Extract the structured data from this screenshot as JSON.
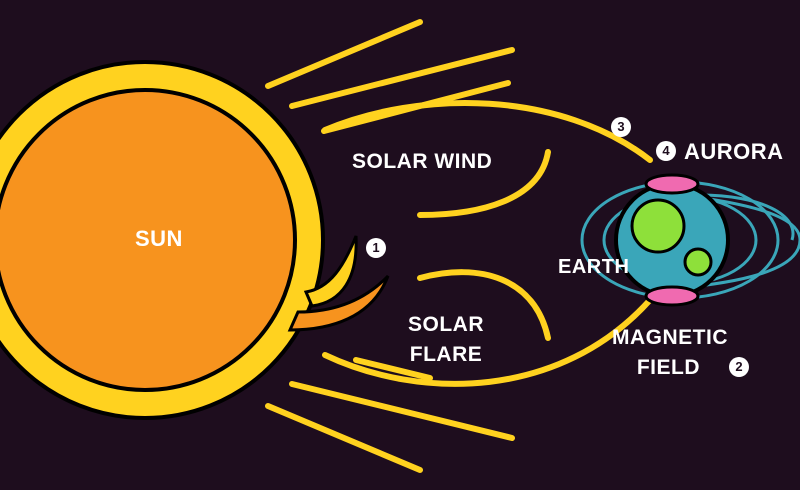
{
  "labels": {
    "sun": "SUN",
    "solar_wind": "SOLAR WIND",
    "solar_flare_line1": "SOLAR",
    "solar_flare_line2": "FLARE",
    "earth": "EARTH",
    "aurora": "AURORA",
    "magnetic_field_line1": "MAGNETIC",
    "magnetic_field_line2": "FIELD"
  },
  "badges": {
    "flare": "1",
    "magnetic_field": "2",
    "wind_arrival": "3",
    "aurora": "4"
  },
  "colors": {
    "background": "#1e0d1e",
    "sun_ring": "#ffd21f",
    "sun_core": "#f7931e",
    "wind_lines": "#ffd21f",
    "earth_ocean": "#3aa6b9",
    "earth_land": "#8ee03a",
    "field_lines": "#3aa6b9",
    "aurora": "#f06ab0",
    "outline": "#000000",
    "text": "#ffffff"
  }
}
